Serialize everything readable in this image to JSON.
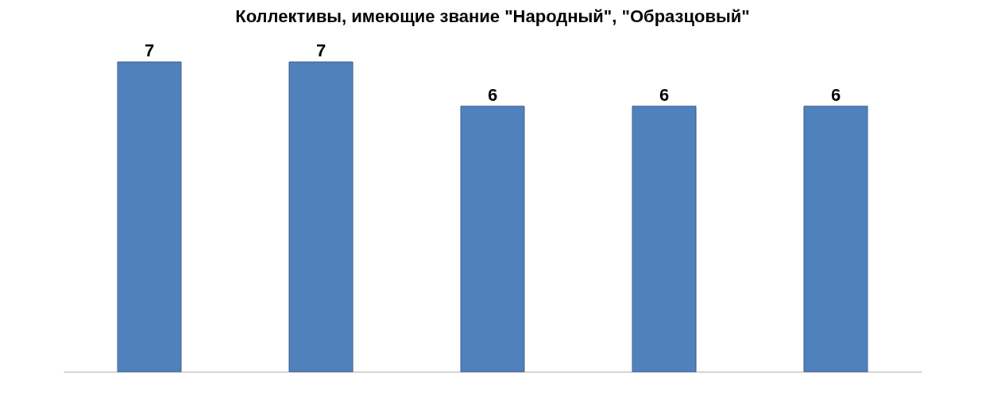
{
  "chart_data": {
    "type": "bar",
    "title": "Коллективы, имеющие звание \"Народный\", \"Образцовый\"",
    "categories": [
      null,
      null,
      null,
      null,
      null
    ],
    "values": [
      7,
      7,
      6,
      6,
      6
    ],
    "color": "#4f81bd",
    "data_labels": true,
    "grid": false
  }
}
